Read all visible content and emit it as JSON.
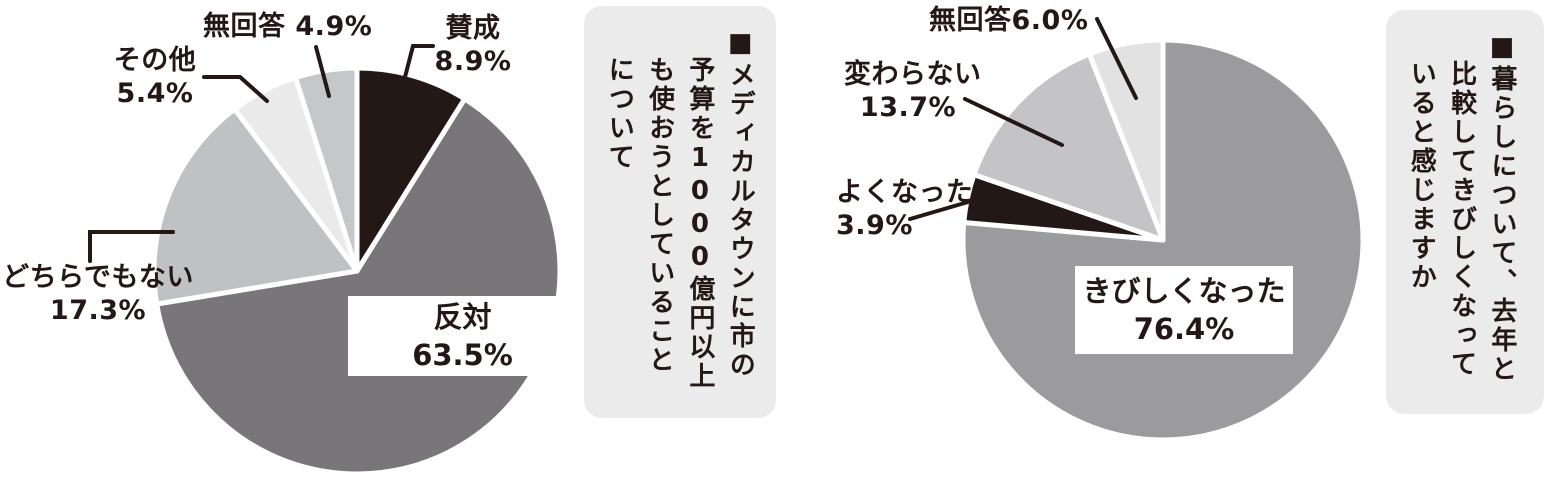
{
  "page": {
    "background": "#ffffff"
  },
  "colors": {
    "ink": "#231815",
    "leader_line": "#231815",
    "slice_separator": "#ffffff",
    "title_box_bg": "#ebebec"
  },
  "chart_data": [
    {
      "type": "pie",
      "title": "■メディカルタウンに市の予算を1000億円以上も使おうとしていることについて",
      "title_columns": [
        "■メディカルタウンに市の",
        "予算を1000億円以上",
        "も使おうとしていること",
        "について"
      ],
      "direction": "clockwise",
      "start_angle_deg": 0,
      "legend_position": "callouts",
      "slices": [
        {
          "label": "賛成",
          "value": 8.9,
          "color": "#231815"
        },
        {
          "label": "反対",
          "value": 63.5,
          "color": "#787678"
        },
        {
          "label": "どちらでもない",
          "value": 17.3,
          "color": "#c0c1c3"
        },
        {
          "label": "その他",
          "value": 5.4,
          "color": "#eaeaeb"
        },
        {
          "label": "無回答",
          "value": 4.9,
          "color": "#c6c7c9"
        }
      ],
      "callouts": {
        "sansei": {
          "line1": "賛成",
          "line2": "8.9%"
        },
        "mukaito": {
          "line1": "無回答 4.9%"
        },
        "sonota": {
          "line1": "その他",
          "line2": "5.4%"
        },
        "dochira": {
          "line1": "どちらでもない",
          "line2": "17.3%"
        },
        "hantai": {
          "line1": "反対",
          "line2": "63.5%"
        }
      }
    },
    {
      "type": "pie",
      "title": "■暮らしについて、去年と比較してきびしくなっていると感じますか",
      "title_columns": [
        "■暮らしについて、去年と",
        "比較してきびしくなって",
        "いると感じますか"
      ],
      "direction": "clockwise",
      "start_angle_deg": 0,
      "legend_position": "callouts",
      "slices": [
        {
          "label": "きびしくなった",
          "value": 76.4,
          "color": "#9b9a9c"
        },
        {
          "label": "よくなった",
          "value": 3.9,
          "color": "#231815"
        },
        {
          "label": "変わらない",
          "value": 13.7,
          "color": "#c4c4c6"
        },
        {
          "label": "無回答",
          "value": 6.0,
          "color": "#e2e2e3"
        }
      ],
      "callouts": {
        "mukaito": {
          "line1": "無回答6.0%"
        },
        "kawaranai": {
          "line1": "変わらない",
          "line2": "13.7%"
        },
        "yokunatta": {
          "line1": "よくなった",
          "line2": "3.9%"
        },
        "kibishiku": {
          "line1": "きびしくなった",
          "line2": "76.4%"
        }
      }
    }
  ]
}
